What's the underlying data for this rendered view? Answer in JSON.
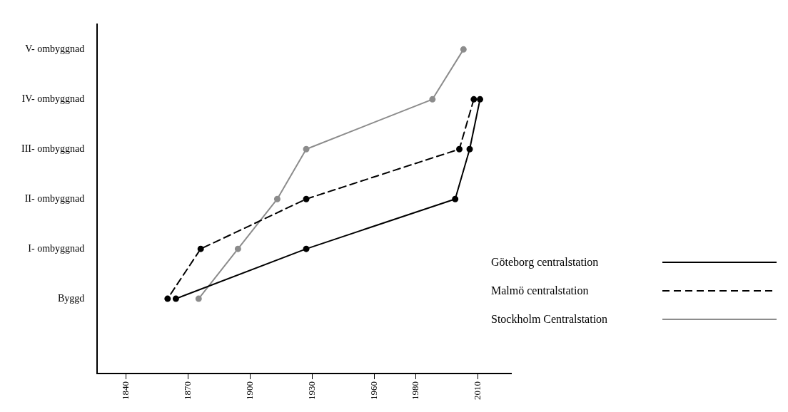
{
  "chart_data": {
    "type": "line",
    "orientation": "horizontal",
    "categories": [
      "V- ombyggnad",
      "IV- ombyggnad",
      "III- ombyggnad",
      "II- ombyggnad",
      "I- ombyggnad",
      "Byggd",
      null
    ],
    "series": [
      {
        "name": "Göteborg centralstation",
        "color": "#000000",
        "line_style": "solid",
        "values": [
          null,
          2011,
          2006,
          1999,
          1927,
          1864,
          null
        ]
      },
      {
        "name": "Malmö centralstation",
        "color": "#000000",
        "line_style": "dashed",
        "values": [
          null,
          2008,
          2001,
          1927,
          1876,
          1860,
          null
        ]
      },
      {
        "name": "Stockholm Centralstation",
        "color": "#8c8c8c",
        "line_style": "solid",
        "values": [
          2003,
          1988,
          1927,
          1913,
          1894,
          1875,
          null
        ]
      }
    ],
    "xlim": [
      1826,
      2026
    ],
    "xticks": [
      1840,
      1870,
      1900,
      1930,
      1960,
      1980,
      2010
    ],
    "grid": false,
    "legend": "right",
    "marker": "circle"
  }
}
